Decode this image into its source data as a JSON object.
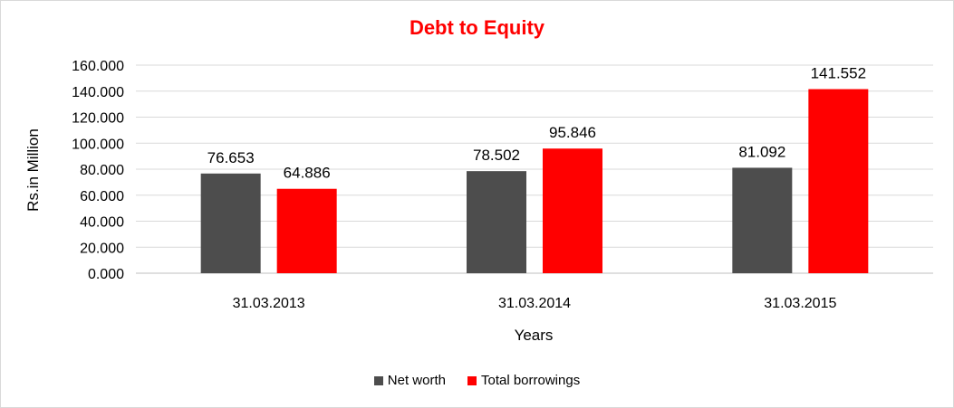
{
  "chart_data": {
    "type": "bar",
    "title": "Debt to Equity",
    "xlabel": "Years",
    "ylabel": "Rs.in Million",
    "categories": [
      "31.03.2013",
      "31.03.2014",
      "31.03.2015"
    ],
    "series": [
      {
        "name": "Net worth",
        "color": "#4d4d4d",
        "values": [
          76.653,
          78.502,
          81.092
        ],
        "labels": [
          "76.653",
          "78.502",
          "81.092"
        ]
      },
      {
        "name": "Total borrowings",
        "color": "#ff0000",
        "values": [
          64.886,
          95.846,
          141.552
        ],
        "labels": [
          "64.886",
          "95.846",
          "141.552"
        ]
      }
    ],
    "ylim": [
      0,
      160
    ],
    "yticks": [
      0,
      20,
      40,
      60,
      80,
      100,
      120,
      140,
      160
    ],
    "ytick_labels": [
      "0.000",
      "20.000",
      "40.000",
      "60.000",
      "80.000",
      "100.000",
      "120.000",
      "140.000",
      "160.000"
    ],
    "grid": true,
    "legend_position": "bottom"
  }
}
